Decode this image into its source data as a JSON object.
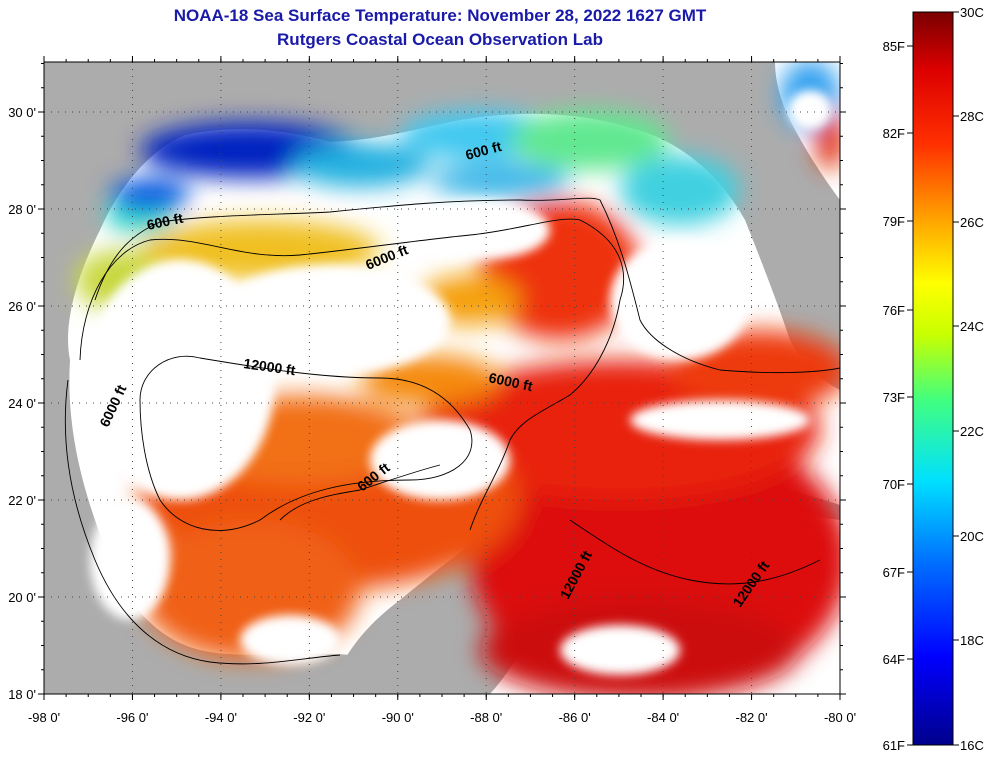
{
  "header": {
    "title": "NOAA-18 Sea Surface Temperature:  November 28, 2022 1627 GMT",
    "subtitle": "Rutgers Coastal Ocean Observation Lab"
  },
  "map": {
    "lon_ticks": [
      {
        "value": -98,
        "label": "-98 0'"
      },
      {
        "value": -96,
        "label": "-96 0'"
      },
      {
        "value": -94,
        "label": "-94 0'"
      },
      {
        "value": -92,
        "label": "-92 0'"
      },
      {
        "value": -90,
        "label": "-90 0'"
      },
      {
        "value": -88,
        "label": "-88 0'"
      },
      {
        "value": -86,
        "label": "-86 0'"
      },
      {
        "value": -84,
        "label": "-84 0'"
      },
      {
        "value": -82,
        "label": "-82 0'"
      },
      {
        "value": -80,
        "label": "-80 0'"
      }
    ],
    "lat_ticks": [
      {
        "value": 18,
        "label": "18 0'"
      },
      {
        "value": 20,
        "label": "20 0'"
      },
      {
        "value": 22,
        "label": "22 0'"
      },
      {
        "value": 24,
        "label": "24 0'"
      },
      {
        "value": 26,
        "label": "26 0'"
      },
      {
        "value": 28,
        "label": "28 0'"
      },
      {
        "value": 30,
        "label": "30 0'"
      }
    ],
    "contour_labels": [
      "600 ft",
      "600 ft",
      "600 ft",
      "6000 ft",
      "6000 ft",
      "6000 ft",
      "12000 ft",
      "12000 ft",
      "12000 ft"
    ],
    "colors": {
      "land": "#acacac",
      "cloud": "#ffffff",
      "contour": "#000000"
    }
  },
  "colorbar": {
    "f_labels": [
      "85F",
      "82F",
      "79F",
      "76F",
      "73F",
      "70F",
      "67F",
      "64F",
      "61F"
    ],
    "c_labels": [
      "30C",
      "28C",
      "26C",
      "24C",
      "22C",
      "20C",
      "18C",
      "16C"
    ]
  }
}
